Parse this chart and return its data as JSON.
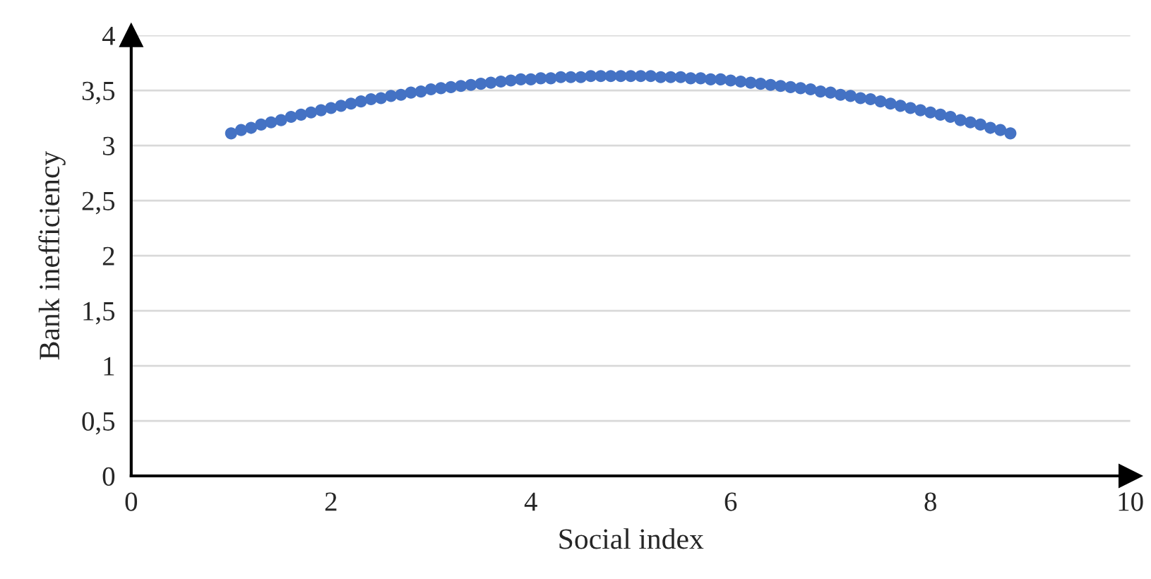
{
  "chart_data": {
    "type": "scatter",
    "xlabel": "Social index",
    "ylabel": "Bank inefficiency",
    "xlim": [
      0,
      10
    ],
    "ylim": [
      0,
      4
    ],
    "xticks": [
      0,
      2,
      4,
      6,
      8,
      10
    ],
    "yticks": [
      0,
      {
        "value": 0.5,
        "label": "0,5"
      },
      1,
      {
        "value": 1.5,
        "label": "1,5"
      },
      2,
      {
        "value": 2.5,
        "label": "2,5"
      },
      3,
      {
        "value": 3.5,
        "label": "3,5"
      },
      4
    ],
    "grid": "y",
    "marker": "circle",
    "series": [
      {
        "color": "#4472c4",
        "x": [
          1.0,
          1.1,
          1.2,
          1.3,
          1.4,
          1.5,
          1.6,
          1.7,
          1.8,
          1.9,
          2.0,
          2.1,
          2.2,
          2.3,
          2.4,
          2.5,
          2.6,
          2.7,
          2.8,
          2.9,
          3.0,
          3.1,
          3.2,
          3.3,
          3.4,
          3.5,
          3.6,
          3.7,
          3.8,
          3.9,
          4.0,
          4.1,
          4.2,
          4.3,
          4.4,
          4.5,
          4.6,
          4.7,
          4.8,
          4.9,
          5.0,
          5.1,
          5.2,
          5.3,
          5.4,
          5.5,
          5.6,
          5.7,
          5.8,
          5.9,
          6.0,
          6.1,
          6.2,
          6.3,
          6.4,
          6.5,
          6.6,
          6.7,
          6.8,
          6.9,
          7.0,
          7.1,
          7.2,
          7.3,
          7.4,
          7.5,
          7.6,
          7.7,
          7.8,
          7.9,
          8.0,
          8.1,
          8.2,
          8.3,
          8.4,
          8.5,
          8.6,
          8.7,
          8.8
        ],
        "values": [
          3.11,
          3.14,
          3.16,
          3.19,
          3.21,
          3.23,
          3.26,
          3.28,
          3.3,
          3.32,
          3.34,
          3.36,
          3.38,
          3.4,
          3.42,
          3.43,
          3.45,
          3.46,
          3.48,
          3.49,
          3.51,
          3.52,
          3.53,
          3.54,
          3.55,
          3.56,
          3.57,
          3.58,
          3.59,
          3.6,
          3.6,
          3.61,
          3.61,
          3.62,
          3.62,
          3.62,
          3.63,
          3.63,
          3.63,
          3.63,
          3.63,
          3.63,
          3.63,
          3.62,
          3.62,
          3.62,
          3.61,
          3.61,
          3.6,
          3.6,
          3.59,
          3.58,
          3.57,
          3.56,
          3.55,
          3.54,
          3.53,
          3.52,
          3.51,
          3.49,
          3.48,
          3.46,
          3.45,
          3.43,
          3.42,
          3.4,
          3.38,
          3.36,
          3.34,
          3.32,
          3.3,
          3.28,
          3.26,
          3.23,
          3.21,
          3.19,
          3.16,
          3.14,
          3.11
        ]
      }
    ]
  }
}
